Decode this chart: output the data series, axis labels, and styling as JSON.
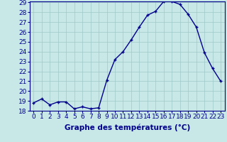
{
  "hours": [
    0,
    1,
    2,
    3,
    4,
    5,
    6,
    7,
    8,
    9,
    10,
    11,
    12,
    13,
    14,
    15,
    16,
    17,
    18,
    19,
    20,
    21,
    22,
    23
  ],
  "temps": [
    18.8,
    19.2,
    18.6,
    18.9,
    18.9,
    18.2,
    18.4,
    18.2,
    18.3,
    21.1,
    23.2,
    24.0,
    25.2,
    26.5,
    27.7,
    28.1,
    29.1,
    29.1,
    28.8,
    27.8,
    26.5,
    23.9,
    22.3,
    21.0
  ],
  "line_color": "#00008b",
  "marker": "+",
  "marker_color": "#00008b",
  "bg_color": "#c8e8e8",
  "grid_color": "#a0c8c8",
  "xlabel": "Graphe des températures (°C)",
  "ylim": [
    18,
    29
  ],
  "xlim": [
    -0.5,
    23.5
  ],
  "yticks": [
    18,
    19,
    20,
    21,
    22,
    23,
    24,
    25,
    26,
    27,
    28,
    29
  ],
  "xticks": [
    0,
    1,
    2,
    3,
    4,
    5,
    6,
    7,
    8,
    9,
    10,
    11,
    12,
    13,
    14,
    15,
    16,
    17,
    18,
    19,
    20,
    21,
    22,
    23
  ],
  "xlabel_fontsize": 7.5,
  "tick_fontsize": 6.5,
  "axis_label_color": "#00008b",
  "spine_color": "#00008b",
  "xlabel_bold": true
}
